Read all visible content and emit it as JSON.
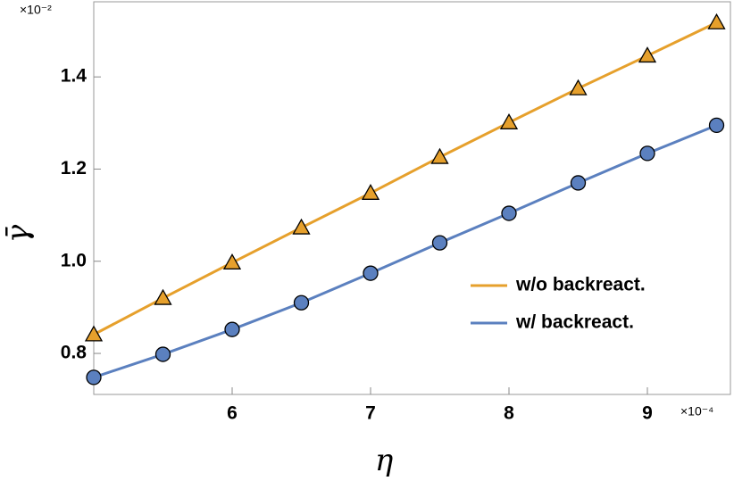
{
  "chart_data": {
    "type": "line",
    "xlabel": "η",
    "ylabel": "γ̄",
    "x_multiplier": "×10⁻⁴",
    "y_multiplier": "×10⁻²",
    "x": [
      5,
      5.5,
      6,
      6.5,
      7,
      7.5,
      8,
      8.5,
      9,
      9.5
    ],
    "series": [
      {
        "name": "w/o backreact.",
        "color": "#e6a02c",
        "marker": "triangle",
        "values": [
          0.841,
          0.92,
          0.997,
          1.073,
          1.148,
          1.226,
          1.301,
          1.375,
          1.446,
          1.518
        ]
      },
      {
        "name": "w/ backreact.",
        "color": "#5b80bf",
        "marker": "circle",
        "values": [
          0.748,
          0.798,
          0.852,
          0.91,
          0.974,
          1.04,
          1.104,
          1.17,
          1.234,
          1.295
        ]
      }
    ],
    "xlim": [
      5,
      9.6
    ],
    "ylim": [
      0.711,
      1.563
    ],
    "xticks": [
      6,
      7,
      8,
      9
    ],
    "yticks": [
      0.8,
      {
        "value": 1,
        "label": "1.0"
      },
      1.2,
      1.4
    ]
  }
}
